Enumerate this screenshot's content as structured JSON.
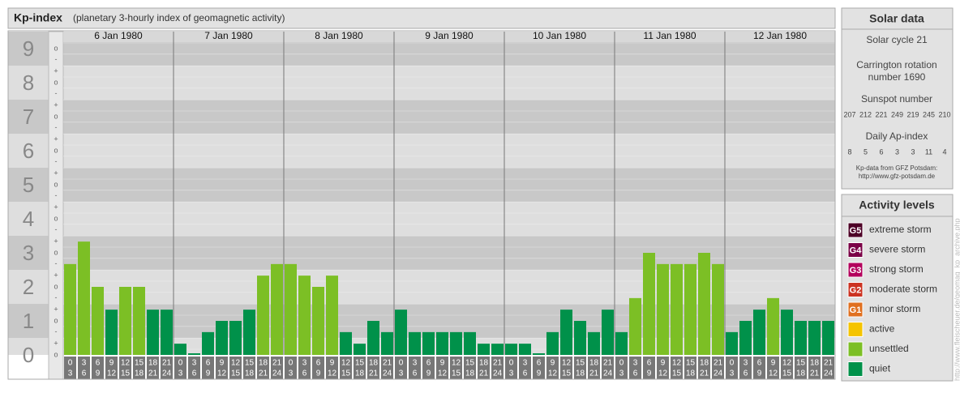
{
  "chart_data": {
    "type": "bar",
    "title": "Kp-index",
    "subtitle": "(planetary 3-hourly index of geomagnetic activity)",
    "ylim": [
      0,
      9.5
    ],
    "yticks": [
      0,
      1,
      2,
      3,
      4,
      5,
      6,
      7,
      8,
      9
    ],
    "minor_ticks": [
      {
        "value": 0,
        "label": "o"
      },
      {
        "value": 0.33,
        "label": "+"
      },
      {
        "value": 0.67,
        "label": "-"
      },
      {
        "value": 1,
        "label": "o"
      },
      {
        "value": 1.33,
        "label": "+"
      },
      {
        "value": 1.67,
        "label": "-"
      },
      {
        "value": 2,
        "label": "o"
      },
      {
        "value": 2.33,
        "label": "+"
      },
      {
        "value": 2.67,
        "label": "-"
      },
      {
        "value": 3,
        "label": "o"
      },
      {
        "value": 3.33,
        "label": "+"
      },
      {
        "value": 3.67,
        "label": "-"
      },
      {
        "value": 4,
        "label": "o"
      },
      {
        "value": 4.33,
        "label": "+"
      },
      {
        "value": 4.67,
        "label": "-"
      },
      {
        "value": 5,
        "label": "o"
      },
      {
        "value": 5.33,
        "label": "+"
      },
      {
        "value": 5.67,
        "label": "-"
      },
      {
        "value": 6,
        "label": "o"
      },
      {
        "value": 6.33,
        "label": "+"
      },
      {
        "value": 6.67,
        "label": "-"
      },
      {
        "value": 7,
        "label": "o"
      },
      {
        "value": 7.33,
        "label": "+"
      },
      {
        "value": 7.67,
        "label": "-"
      },
      {
        "value": 8,
        "label": "o"
      },
      {
        "value": 8.33,
        "label": "+"
      },
      {
        "value": 8.67,
        "label": "-"
      },
      {
        "value": 9,
        "label": "o"
      }
    ],
    "hour_labels": [
      [
        "0",
        "3"
      ],
      [
        "3",
        "6"
      ],
      [
        "6",
        "9"
      ],
      [
        "9",
        "12"
      ],
      [
        "12",
        "15"
      ],
      [
        "15",
        "18"
      ],
      [
        "18",
        "21"
      ],
      [
        "21",
        "24"
      ]
    ],
    "days": [
      {
        "date": "6 Jan 1980",
        "values": [
          2.67,
          3.33,
          2,
          1.33,
          2,
          2,
          1.33,
          1.33
        ],
        "colors": [
          "#7cbf25",
          "#7cbf25",
          "#7cbf25",
          "#00914a",
          "#7cbf25",
          "#7cbf25",
          "#00914a",
          "#00914a"
        ]
      },
      {
        "date": "7 Jan 1980",
        "values": [
          0.33,
          0,
          0.67,
          1,
          1,
          1.33,
          2.33,
          2.67
        ],
        "colors": [
          "#00914a",
          "#00914a",
          "#00914a",
          "#00914a",
          "#00914a",
          "#00914a",
          "#7cbf25",
          "#7cbf25"
        ]
      },
      {
        "date": "8 Jan 1980",
        "values": [
          2.67,
          2.33,
          2,
          2.33,
          0.67,
          0.33,
          1,
          0.67
        ],
        "colors": [
          "#7cbf25",
          "#7cbf25",
          "#7cbf25",
          "#7cbf25",
          "#00914a",
          "#00914a",
          "#00914a",
          "#00914a"
        ]
      },
      {
        "date": "9 Jan 1980",
        "values": [
          1.33,
          0.67,
          0.67,
          0.67,
          0.67,
          0.67,
          0.33,
          0.33
        ],
        "colors": [
          "#00914a",
          "#00914a",
          "#00914a",
          "#00914a",
          "#00914a",
          "#00914a",
          "#00914a",
          "#00914a"
        ]
      },
      {
        "date": "10 Jan 1980",
        "values": [
          0.33,
          0.33,
          0,
          0.67,
          1.33,
          1,
          0.67,
          1.33
        ],
        "colors": [
          "#00914a",
          "#00914a",
          "#00914a",
          "#00914a",
          "#00914a",
          "#00914a",
          "#00914a",
          "#00914a"
        ]
      },
      {
        "date": "11 Jan 1980",
        "values": [
          0.67,
          1.67,
          3,
          2.67,
          2.67,
          2.67,
          3,
          2.67
        ],
        "colors": [
          "#00914a",
          "#7cbf25",
          "#7cbf25",
          "#7cbf25",
          "#7cbf25",
          "#7cbf25",
          "#7cbf25",
          "#7cbf25"
        ]
      },
      {
        "date": "12 Jan 1980",
        "values": [
          0.67,
          1,
          1.33,
          1.67,
          1.33,
          1,
          1,
          1
        ],
        "colors": [
          "#00914a",
          "#00914a",
          "#00914a",
          "#7cbf25",
          "#00914a",
          "#00914a",
          "#00914a",
          "#00914a"
        ]
      }
    ]
  },
  "solar": {
    "title": "Solar data",
    "cycle": "Solar cycle 21",
    "carrington": [
      "Carrington rotation",
      "number 1690"
    ],
    "sunspot_label": "Sunspot number",
    "sunspot": [
      207,
      212,
      221,
      249,
      219,
      245,
      210
    ],
    "ap_label": "Daily Ap-index",
    "ap": [
      8,
      5,
      6,
      3,
      3,
      11,
      4
    ],
    "source": [
      "Kp-data from GFZ Potsdam:",
      "http://www.gfz-potsdam.de"
    ]
  },
  "legend": {
    "title": "Activity levels",
    "items": [
      {
        "badge": "G5",
        "name": "extreme storm",
        "color": "#4d0026"
      },
      {
        "badge": "G4",
        "name": "severe storm",
        "color": "#7a0046"
      },
      {
        "badge": "G3",
        "name": "strong storm",
        "color": "#b3005c"
      },
      {
        "badge": "G2",
        "name": "moderate storm",
        "color": "#cc3322"
      },
      {
        "badge": "G1",
        "name": "minor storm",
        "color": "#e07020"
      },
      {
        "name": "active",
        "color": "#f5c400"
      },
      {
        "name": "unsettled",
        "color": "#7cbf25"
      },
      {
        "name": "quiet",
        "color": "#00914a"
      }
    ]
  },
  "credit": "http://www.fleischeuer.de/geomag_kp_archive.php"
}
